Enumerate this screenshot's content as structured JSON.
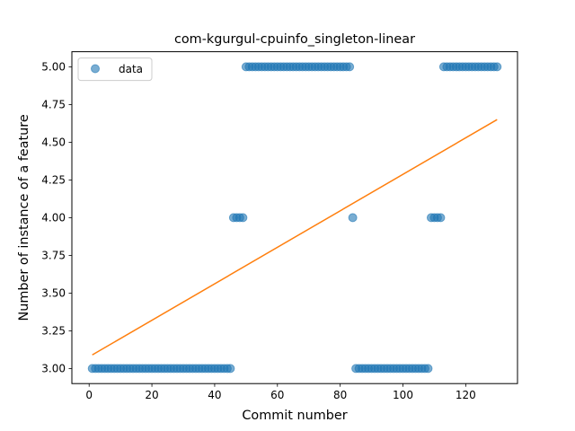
{
  "chart_data": {
    "type": "scatter",
    "title": "com-kgurgul-cpuinfo_singleton-linear",
    "xlabel": "Commit number",
    "ylabel": "Number of instance of a feature",
    "xlim": [
      -5.5,
      136.5
    ],
    "ylim": [
      2.9,
      5.1
    ],
    "xticks": [
      0,
      20,
      40,
      60,
      80,
      100,
      120
    ],
    "yticks": [
      3.0,
      3.25,
      3.5,
      3.75,
      4.0,
      4.25,
      4.5,
      4.75,
      5.0
    ],
    "xtick_labels": [
      "0",
      "20",
      "40",
      "60",
      "80",
      "100",
      "120"
    ],
    "ytick_labels": [
      "3.00",
      "3.25",
      "3.50",
      "3.75",
      "4.00",
      "4.25",
      "4.50",
      "4.75",
      "5.00"
    ],
    "legend": {
      "position": "top-left",
      "entries": [
        "data"
      ]
    },
    "grid": false,
    "colors": {
      "data": "#1f77b4",
      "fit": "#ff7f0e"
    },
    "series": [
      {
        "name": "data",
        "kind": "scatter",
        "segments": [
          {
            "x_start": 1,
            "x_end": 45,
            "y": 3.0
          },
          {
            "x_start": 46,
            "x_end": 49,
            "y": 4.0
          },
          {
            "x_start": 50,
            "x_end": 83,
            "y": 5.0
          },
          {
            "x_start": 84,
            "x_end": 84,
            "y": 4.0
          },
          {
            "x_start": 85,
            "x_end": 108,
            "y": 3.0
          },
          {
            "x_start": 109,
            "x_end": 112,
            "y": 4.0
          },
          {
            "x_start": 113,
            "x_end": 130,
            "y": 5.0
          }
        ]
      },
      {
        "kind": "line",
        "x": [
          1,
          130
        ],
        "y": [
          3.09,
          4.65
        ]
      }
    ]
  }
}
